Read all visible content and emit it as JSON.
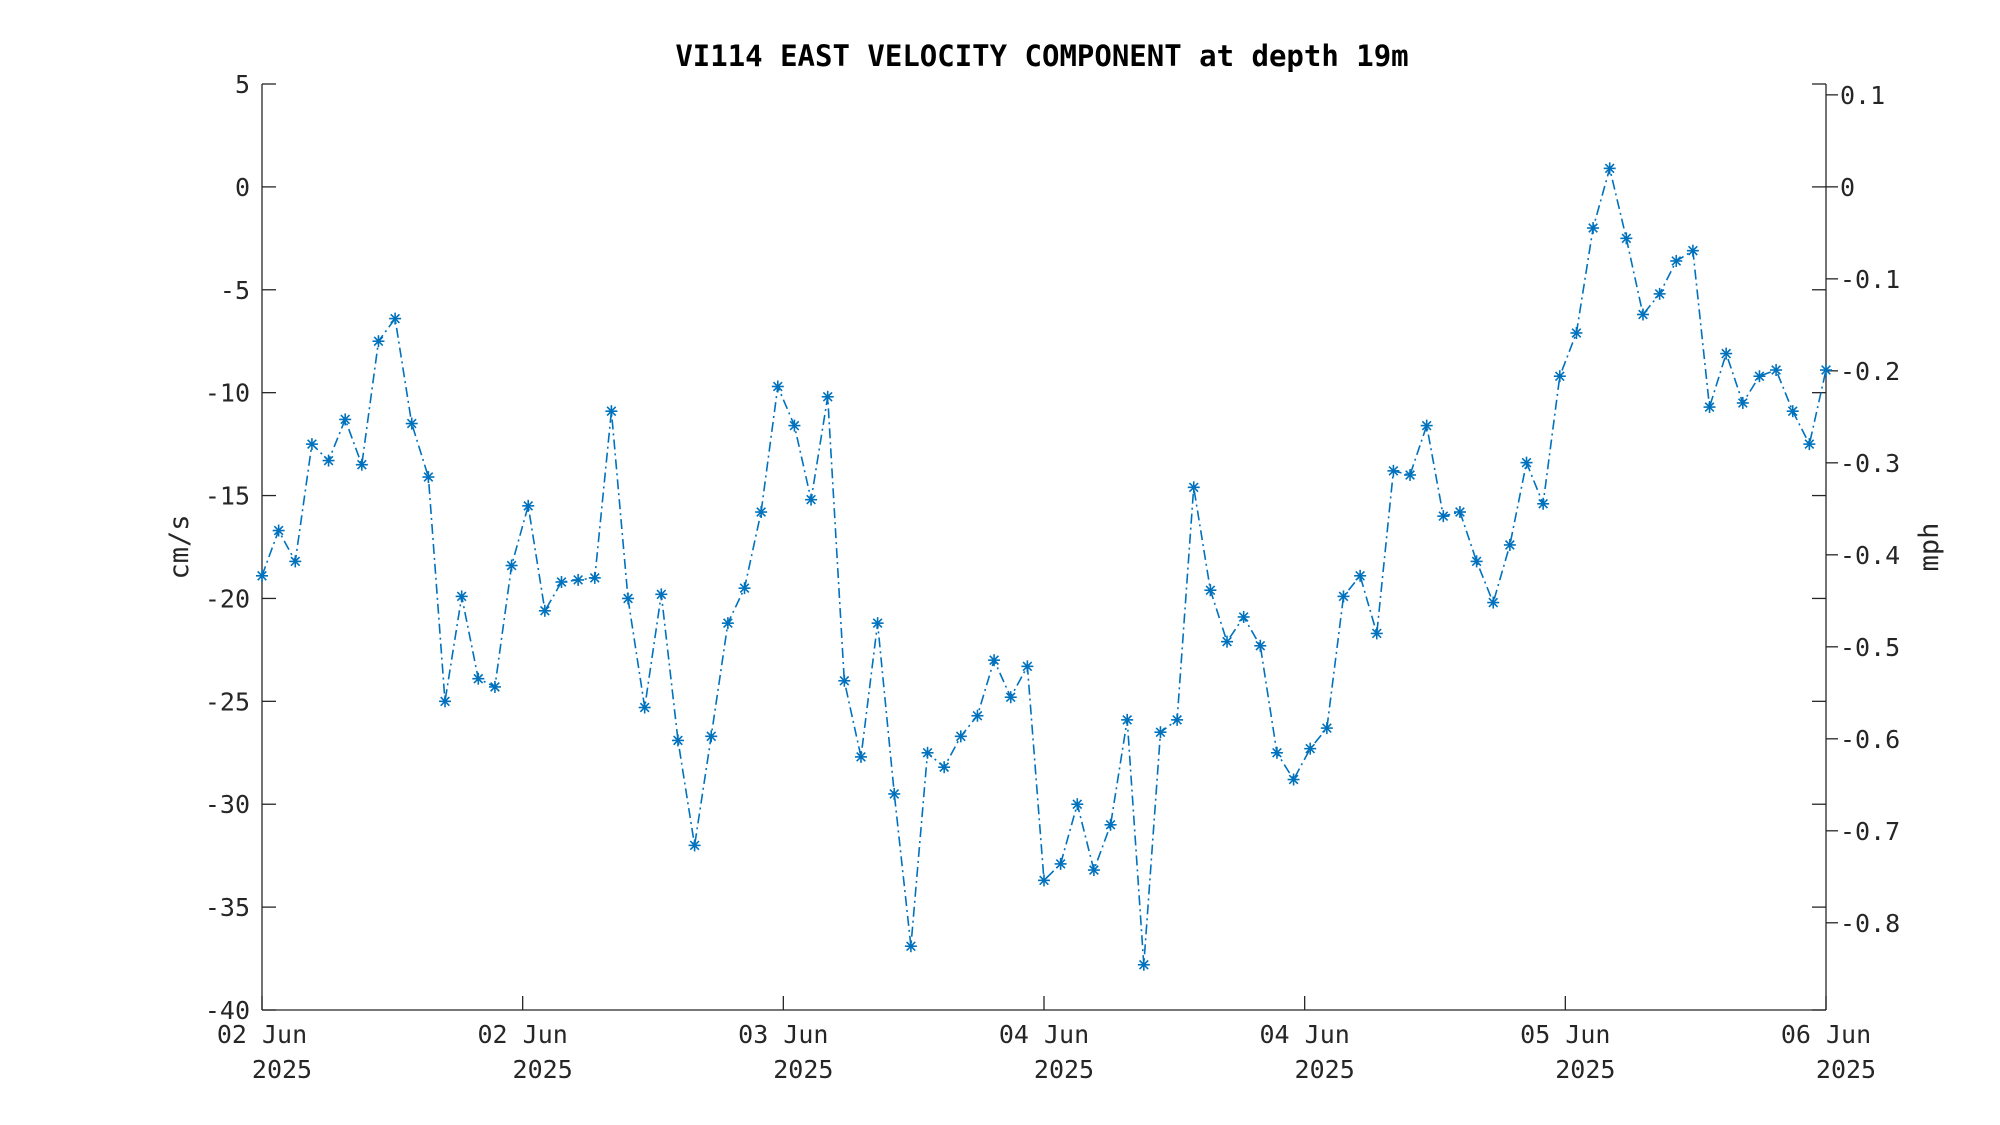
{
  "chart_data": {
    "type": "line",
    "title": "VI114 EAST VELOCITY COMPONENT at depth 19m",
    "ylabel": "cm/s",
    "y2label": "mph",
    "ylim": [
      -40,
      5
    ],
    "y2lim": [
      -0.8948,
      0.1118
    ],
    "yticks": [
      "5",
      "0",
      "-5",
      "-10",
      "-15",
      "-20",
      "-25",
      "-30",
      "-35",
      "-40"
    ],
    "y2ticks": [
      "0.1",
      "0",
      "-0.1",
      "-0.2",
      "-0.3",
      "-0.4",
      "-0.5",
      "-0.6",
      "-0.7",
      "-0.8"
    ],
    "xticks": [
      {
        "line1": "02 Jun",
        "line2": "2025"
      },
      {
        "line1": "02 Jun",
        "line2": "2025"
      },
      {
        "line1": "03 Jun",
        "line2": "2025"
      },
      {
        "line1": "04 Jun",
        "line2": "2025"
      },
      {
        "line1": "04 Jun",
        "line2": "2025"
      },
      {
        "line1": "05 Jun",
        "line2": "2025"
      },
      {
        "line1": "06 Jun",
        "line2": "2025"
      }
    ],
    "grid": false,
    "marker": "asterisk",
    "line_style": "dash-dot",
    "colors": {
      "series": "#0072BD",
      "axis": "#262626"
    },
    "series": [
      {
        "values": [
          -18.9,
          -16.7,
          -18.2,
          -12.5,
          -13.3,
          -11.3,
          -13.5,
          -7.5,
          -6.4,
          -11.5,
          -14.1,
          -25.0,
          -19.9,
          -23.9,
          -24.3,
          -18.4,
          -15.5,
          -20.6,
          -19.2,
          -19.1,
          -19.0,
          -10.9,
          -20.0,
          -25.3,
          -19.8,
          -26.9,
          -32.0,
          -26.7,
          -21.2,
          -19.5,
          -15.8,
          -9.7,
          -11.6,
          -15.2,
          -10.2,
          -24.0,
          -27.7,
          -21.2,
          -29.5,
          -36.9,
          -27.5,
          -28.2,
          -26.7,
          -25.7,
          -23.0,
          -24.8,
          -23.3,
          -33.7,
          -32.9,
          -30.0,
          -33.2,
          -31.0,
          -25.9,
          -37.8,
          -26.5,
          -25.9,
          -14.6,
          -19.6,
          -22.1,
          -20.9,
          -22.3,
          -27.5,
          -28.8,
          -27.3,
          -26.3,
          -19.9,
          -18.9,
          -21.7,
          -13.8,
          -14.0,
          -11.6,
          -16.0,
          -15.8,
          -18.2,
          -20.2,
          -17.4,
          -13.4,
          -15.4,
          -9.2,
          -7.1,
          -2.0,
          0.9,
          -2.5,
          -6.2,
          -5.2,
          -3.6,
          -3.1,
          -10.7,
          -8.1,
          -10.5,
          -9.2,
          -8.9,
          -10.9,
          -12.5,
          -8.9
        ]
      }
    ]
  }
}
